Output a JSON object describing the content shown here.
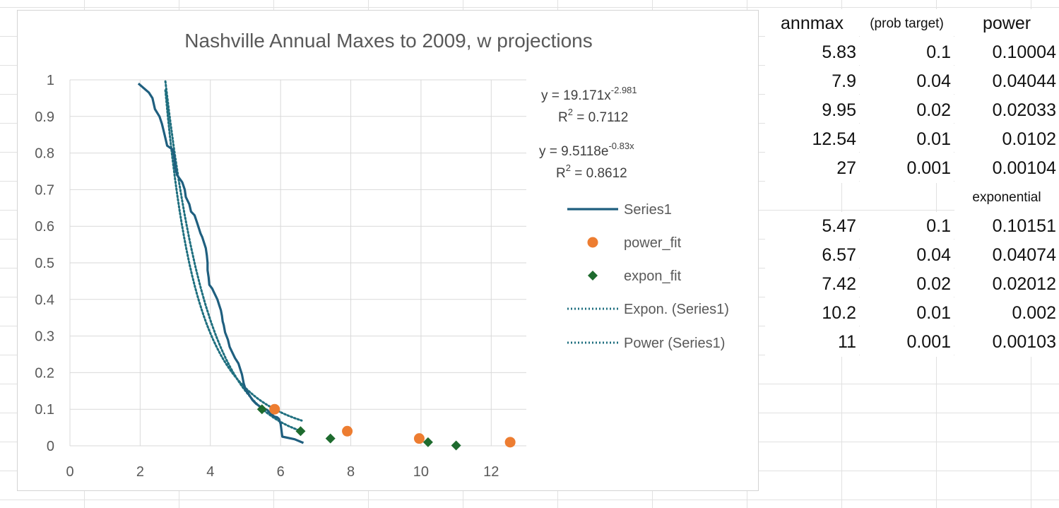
{
  "chart_data": {
    "type": "line",
    "title": "Nashville Annual Maxes to 2009, w projections",
    "xlim": [
      0,
      13
    ],
    "ylim": [
      0,
      1
    ],
    "x_ticks": [
      0,
      2,
      4,
      6,
      8,
      10,
      12
    ],
    "y_ticks": [
      0,
      0.1,
      0.2,
      0.3,
      0.4,
      0.5,
      0.6,
      0.7,
      0.8,
      0.9,
      1
    ],
    "grid": true,
    "legend_position": "right",
    "series": [
      {
        "name": "Series1",
        "style": "line",
        "color": "#1f5f7f",
        "points": [
          [
            1.95,
            0.99
          ],
          [
            2.25,
            0.965
          ],
          [
            2.35,
            0.95
          ],
          [
            2.42,
            0.92
          ],
          [
            2.55,
            0.9
          ],
          [
            2.62,
            0.88
          ],
          [
            2.67,
            0.86
          ],
          [
            2.72,
            0.84
          ],
          [
            2.77,
            0.82
          ],
          [
            2.92,
            0.81
          ],
          [
            2.97,
            0.79
          ],
          [
            3.0,
            0.76
          ],
          [
            3.05,
            0.74
          ],
          [
            3.2,
            0.72
          ],
          [
            3.27,
            0.7
          ],
          [
            3.3,
            0.68
          ],
          [
            3.4,
            0.66
          ],
          [
            3.45,
            0.64
          ],
          [
            3.55,
            0.63
          ],
          [
            3.62,
            0.61
          ],
          [
            3.67,
            0.595
          ],
          [
            3.72,
            0.58
          ],
          [
            3.77,
            0.57
          ],
          [
            3.82,
            0.555
          ],
          [
            3.87,
            0.54
          ],
          [
            3.9,
            0.52
          ],
          [
            3.92,
            0.5
          ],
          [
            3.92,
            0.48
          ],
          [
            3.95,
            0.46
          ],
          [
            3.97,
            0.44
          ],
          [
            4.05,
            0.43
          ],
          [
            4.1,
            0.42
          ],
          [
            4.15,
            0.41
          ],
          [
            4.2,
            0.4
          ],
          [
            4.25,
            0.385
          ],
          [
            4.3,
            0.37
          ],
          [
            4.33,
            0.355
          ],
          [
            4.35,
            0.34
          ],
          [
            4.38,
            0.33
          ],
          [
            4.42,
            0.31
          ],
          [
            4.5,
            0.29
          ],
          [
            4.55,
            0.27
          ],
          [
            4.6,
            0.26
          ],
          [
            4.7,
            0.24
          ],
          [
            4.8,
            0.225
          ],
          [
            4.85,
            0.21
          ],
          [
            4.9,
            0.195
          ],
          [
            4.95,
            0.17
          ],
          [
            5.0,
            0.155
          ],
          [
            5.1,
            0.14
          ],
          [
            5.2,
            0.125
          ],
          [
            5.3,
            0.115
          ],
          [
            5.45,
            0.105
          ],
          [
            5.62,
            0.098
          ],
          [
            5.7,
            0.09
          ],
          [
            5.82,
            0.08
          ],
          [
            5.9,
            0.078
          ],
          [
            5.95,
            0.074
          ],
          [
            6.0,
            0.06
          ],
          [
            6.05,
            0.025
          ],
          [
            6.4,
            0.018
          ],
          [
            6.65,
            0.008
          ]
        ]
      },
      {
        "name": "power_fit",
        "style": "marker-circle",
        "color": "#ed7d31",
        "points": [
          [
            5.83,
            0.1
          ],
          [
            7.9,
            0.04
          ],
          [
            9.95,
            0.02
          ],
          [
            12.54,
            0.01
          ]
        ]
      },
      {
        "name": "expon_fit",
        "style": "marker-diamond",
        "color": "#1e6b2e",
        "points": [
          [
            5.47,
            0.1
          ],
          [
            6.57,
            0.04
          ],
          [
            7.42,
            0.02
          ],
          [
            10.2,
            0.01
          ],
          [
            11,
            0.001
          ]
        ]
      },
      {
        "name": "Expon. (Series1)",
        "style": "dotted",
        "color": "#1f6f7f",
        "equation": "y = 9.5118e",
        "equation_sup": "-0.83x",
        "r2": "0.8612"
      },
      {
        "name": "Power (Series1)",
        "style": "dotted",
        "color": "#1f6f7f",
        "equation": "y = 19.171x",
        "equation_sup": "-2.981",
        "r2": "0.7112"
      }
    ]
  },
  "sheet": {
    "headers": [
      "annmax",
      "(prob target)",
      "power"
    ],
    "power_rows": [
      [
        "5.83",
        "0.1",
        "0.10004"
      ],
      [
        "7.9",
        "0.04",
        "0.04044"
      ],
      [
        "9.95",
        "0.02",
        "0.02033"
      ],
      [
        "12.54",
        "0.01",
        "0.0102"
      ],
      [
        "27",
        "0.001",
        "0.00104"
      ]
    ],
    "exp_label": "exponential",
    "exp_rows": [
      [
        "5.47",
        "0.1",
        "0.10151"
      ],
      [
        "6.57",
        "0.04",
        "0.04074"
      ],
      [
        "7.42",
        "0.02",
        "0.02012"
      ],
      [
        "10.2",
        "0.01",
        "0.002"
      ],
      [
        "11",
        "0.001",
        "0.00103"
      ]
    ]
  }
}
